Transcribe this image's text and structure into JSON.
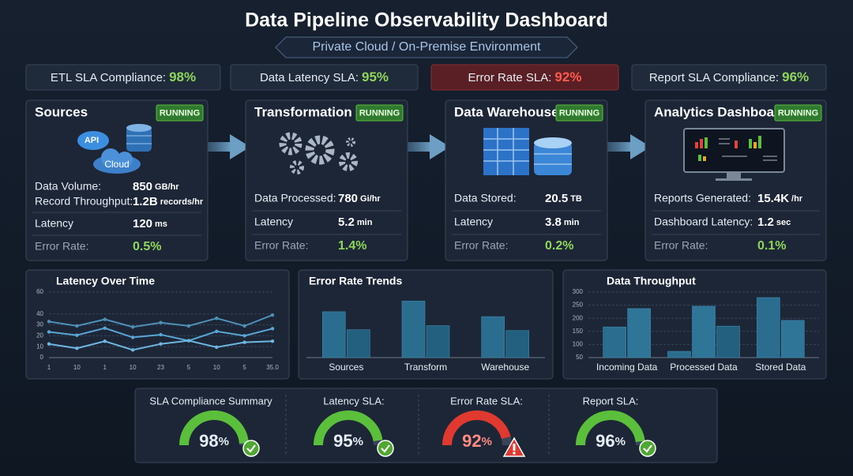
{
  "header": {
    "title": "Data Pipeline Observability Dashboard",
    "subtitle": "Private Cloud / On-Premise Environment"
  },
  "sla_badges": [
    {
      "label": "ETL SLA Compliance:",
      "value": "98%",
      "color": "#8fd65a"
    },
    {
      "label": "Data Latency SLA:",
      "value": "95%",
      "color": "#8fd65a"
    },
    {
      "label": "Error Rate SLA:",
      "value": "92%",
      "color": "#ff5a4f",
      "highlight": true
    },
    {
      "label": "Report SLA Compliance:",
      "value": "96%",
      "color": "#8fd65a"
    }
  ],
  "stages": [
    {
      "title": "Sources",
      "status": "RUNNING",
      "icon_labels": [
        "API",
        "Cloud"
      ],
      "metrics": [
        {
          "label": "Data Volume:",
          "value": "850",
          "unit": "GB/hr"
        },
        {
          "label": "Record Throughput:",
          "value": "1.2B",
          "unit": "records/hr"
        },
        {
          "label": "Latency",
          "value": "120",
          "unit": "ms"
        },
        {
          "label": "Error Rate:",
          "value": "0.5%",
          "highlight": true
        }
      ]
    },
    {
      "title": "Transformation",
      "status": "RUNNING",
      "metrics": [
        {
          "label": "Data Processed:",
          "value": "780",
          "unit": "Gi/hr"
        },
        {
          "label": "Latency",
          "value": "5.2",
          "unit": "min"
        },
        {
          "label": "Error Rate:",
          "value": "1.4%",
          "highlight": true
        }
      ]
    },
    {
      "title": "Data Warehouse",
      "status": "RUNNING",
      "metrics": [
        {
          "label": "Data Stored:",
          "value": "20.5",
          "unit": "TB"
        },
        {
          "label": "Latency",
          "value": "3.8",
          "unit": "min"
        },
        {
          "label": "Error Rate:",
          "value": "0.2%",
          "highlight": true
        }
      ]
    },
    {
      "title": "Analytics Dashboard",
      "status": "RUNNING",
      "metrics": [
        {
          "label": "Reports Generated:",
          "value": "15.4K",
          "unit": "/hr"
        },
        {
          "label": "Dashboard Latency:",
          "value": "1.2",
          "unit": "sec"
        },
        {
          "label": "Error Rate:",
          "value": "0.1%",
          "highlight": true
        }
      ]
    }
  ],
  "chart_data": [
    {
      "type": "line",
      "title": "Latency Over Time",
      "categories": [
        "1",
        "10",
        "1",
        "10",
        "23",
        "5",
        "10",
        "5",
        "35.0"
      ],
      "ylim": [
        0,
        60
      ],
      "yticks": [
        0,
        10,
        20,
        30,
        40,
        60
      ],
      "grid": true,
      "series": [
        {
          "color": "#4f8fb8",
          "values": [
            33,
            29,
            35,
            28,
            32,
            29,
            36,
            29,
            39
          ]
        },
        {
          "color": "#5aa6d6",
          "values": [
            23.5,
            20.5,
            27,
            18.5,
            21,
            15.5,
            24,
            20,
            26.5
          ]
        },
        {
          "color": "#6fb6e0",
          "values": [
            12.5,
            8.5,
            15,
            7,
            12.5,
            15.5,
            9.5,
            14,
            15
          ]
        }
      ]
    },
    {
      "type": "bar",
      "title": "Error Rate Trends",
      "categories": [
        "Sources",
        "Transform",
        "Warehouse"
      ],
      "ylim": [
        0,
        80
      ],
      "series": [
        {
          "color": "#2a6d8f",
          "values": [
            56,
            69,
            50
          ]
        },
        {
          "color": "#23607f",
          "values": [
            34,
            39,
            33
          ]
        }
      ]
    },
    {
      "type": "bar",
      "title": "Data Throughput",
      "categories": [
        "Incoming Data",
        "Processed Data",
        "Stored Data"
      ],
      "ylim": [
        50,
        300
      ],
      "yticks": [
        50,
        100,
        150,
        200,
        250,
        300
      ],
      "grid": true,
      "series": [
        {
          "color": "#2a6d8f",
          "values": [
            167,
            74,
            279
          ]
        },
        {
          "color": "#2f7598",
          "values": [
            237,
            246,
            192
          ]
        },
        {
          "color": "#23607f",
          "values": [
            null,
            170,
            null
          ]
        }
      ]
    }
  ],
  "gauges": [
    {
      "title": "SLA Compliance Summary",
      "value": 98,
      "unit": "%",
      "color": "#5cbf3c",
      "icon": "check"
    },
    {
      "title": "Latency SLA:",
      "value": 95,
      "unit": "%",
      "color": "#5cbf3c",
      "icon": "check"
    },
    {
      "title": "Error Rate SLA:",
      "value": 92,
      "unit": "%",
      "color": "#e0392f",
      "icon": "warning"
    },
    {
      "title": "Report SLA:",
      "value": 96,
      "unit": "%",
      "color": "#5cbf3c",
      "icon": "check"
    }
  ]
}
